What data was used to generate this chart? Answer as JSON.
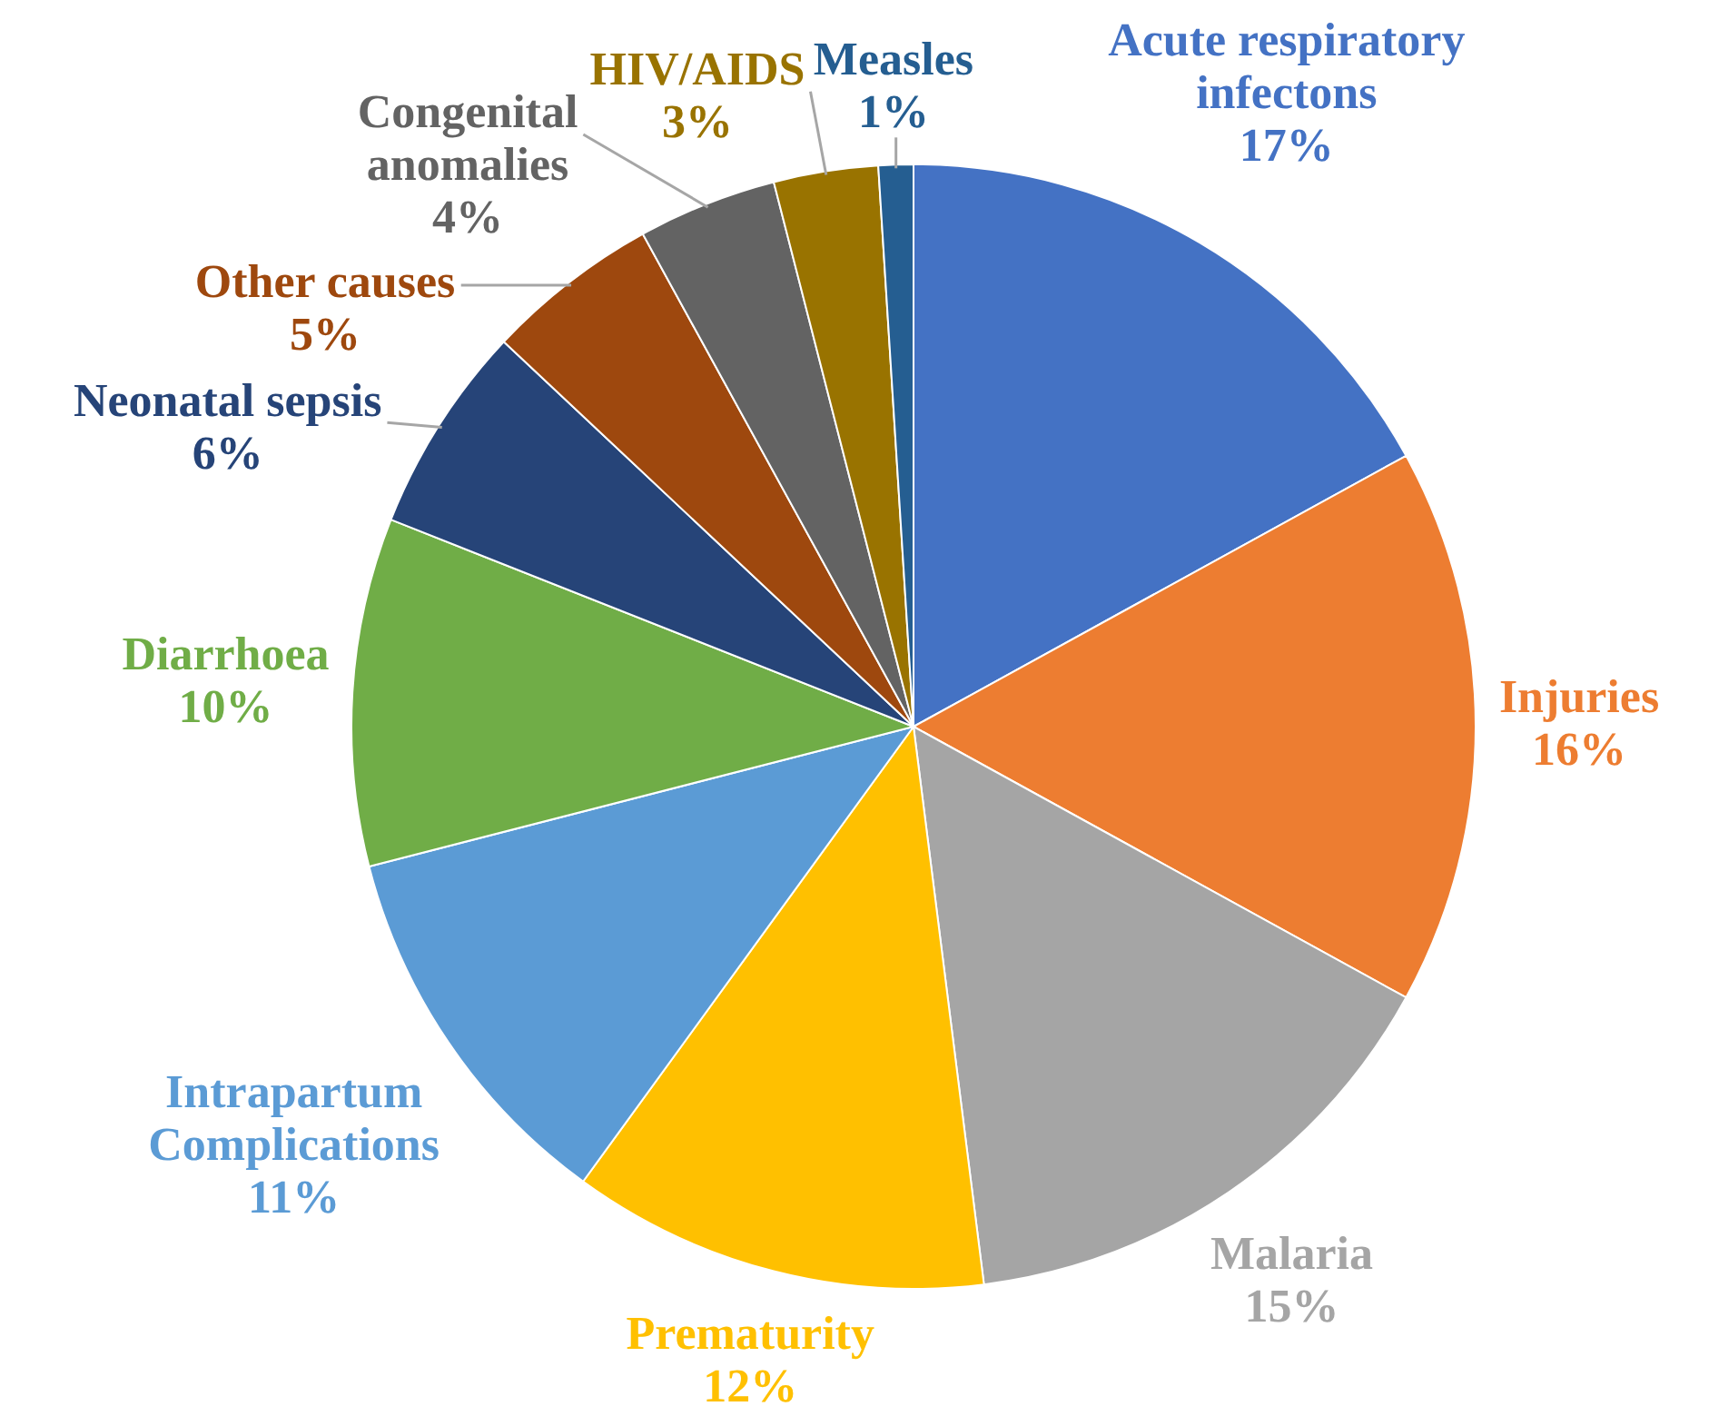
{
  "chart_data": {
    "type": "pie",
    "categories": [
      "Acute respiratory infectons",
      "Injuries",
      "Malaria",
      "Prematurity",
      "Intrapartum Complications",
      "Diarrhoea",
      "Neonatal sepsis",
      "Other causes",
      "Congenital anomalies",
      "HIV/AIDS",
      "Measles"
    ],
    "values": [
      17,
      16,
      15,
      12,
      11,
      10,
      6,
      5,
      4,
      3,
      1
    ],
    "colors": [
      "#4472c4",
      "#ed7d31",
      "#a5a5a5",
      "#ffc000",
      "#5b9bd5",
      "#70ad47",
      "#264478",
      "#9e480e",
      "#636363",
      "#997300",
      "#255e91"
    ],
    "value_labels": [
      "17%",
      "16%",
      "15%",
      "12%",
      "11%",
      "10%",
      "6%",
      "5%",
      "4%",
      "3%",
      "1%"
    ]
  }
}
